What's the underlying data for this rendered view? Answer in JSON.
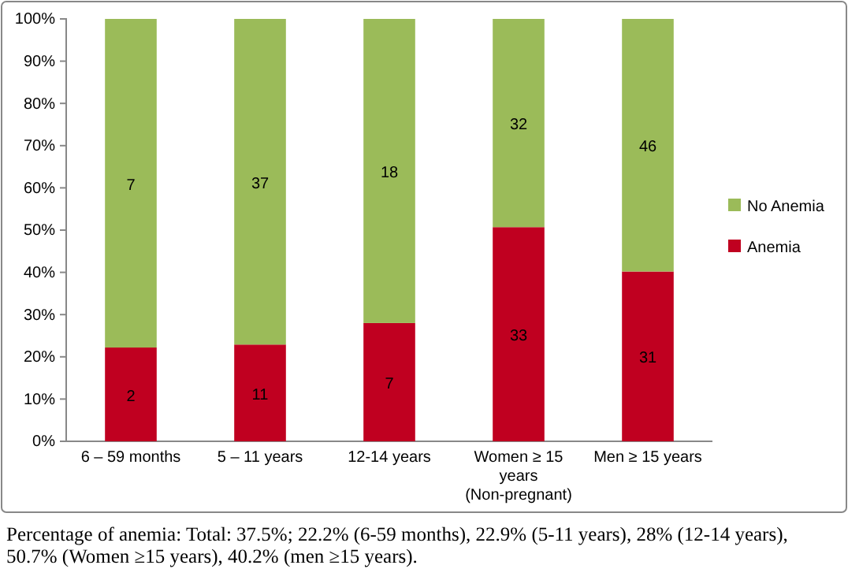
{
  "chart_data": {
    "type": "bar",
    "stacked": true,
    "categories": [
      "6 – 59 months",
      "5 – 11 years",
      "12-14 years",
      "Women  ≥ 15 years (Non-pregnant)",
      "Men ≥ 15 years"
    ],
    "series": [
      {
        "name": "Anemia",
        "color": "#c00020",
        "values": [
          22.2,
          22.9,
          28,
          50.7,
          40.2
        ]
      },
      {
        "name": "No Anemia",
        "color": "#9bbb59",
        "values": [
          77.8,
          77.1,
          72,
          49.3,
          59.8
        ]
      }
    ],
    "ylim": [
      0,
      100
    ],
    "yticks": [
      {
        "value": 0,
        "label": "0%"
      },
      {
        "value": 10,
        "label": "10%"
      },
      {
        "value": 20,
        "label": "20%"
      },
      {
        "value": 30,
        "label": "30%"
      },
      {
        "value": 40,
        "label": "40%"
      },
      {
        "value": 50,
        "label": "50%"
      },
      {
        "value": 60,
        "label": "60%"
      },
      {
        "value": 70,
        "label": "70%"
      },
      {
        "value": 80,
        "label": "80%"
      },
      {
        "value": 90,
        "label": "90%"
      },
      {
        "value": 100,
        "label": "100%"
      }
    ],
    "grid": false,
    "legend": "right",
    "annotations": [
      "2",
      "11",
      "7",
      "33",
      "31",
      "7",
      "37",
      "18",
      "32",
      "46",
      "Percentage of anemia: Total: 37.5%; 22.2% (6-59 months), 22.9% (5-11 years), 28% (12-14 years), 50.7% (Women ≥15 years), 40.2% (men ≥15 years)."
    ]
  }
}
